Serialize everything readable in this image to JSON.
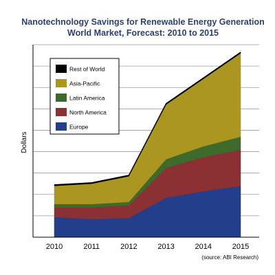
{
  "chart_data": {
    "type": "area",
    "stacked": true,
    "title": "Nanotechnology Savings for Renewable Energy Generation",
    "subtitle": "World Market, Forecast: 2010 to 2015",
    "xlabel": "",
    "ylabel": "Dollars",
    "source": "(source: ABI Research)",
    "categories": [
      "2010",
      "2011",
      "2012",
      "2013",
      "2014",
      "2015"
    ],
    "ylim": [
      0,
      9
    ],
    "y_tick_labels_shown": false,
    "grid": true,
    "legend_position": "top-left",
    "series": [
      {
        "name": "Europe",
        "color": "#233e8b",
        "values": [
          0.95,
          0.85,
          0.9,
          1.85,
          2.15,
          2.4
        ]
      },
      {
        "name": "North America",
        "color": "#8b3033",
        "values": [
          0.45,
          0.55,
          0.6,
          1.4,
          1.6,
          1.7
        ]
      },
      {
        "name": "Latin America",
        "color": "#3e6b2c",
        "values": [
          0.15,
          0.15,
          0.15,
          0.4,
          0.5,
          0.6
        ]
      },
      {
        "name": "Asia-Pacific",
        "color": "#ab9622",
        "values": [
          0.85,
          0.95,
          1.2,
          2.55,
          3.15,
          3.9
        ]
      },
      {
        "name": "Rest of World",
        "color": "#000000",
        "values": [
          0.05,
          0.05,
          0.05,
          0.05,
          0.05,
          0.05
        ]
      }
    ]
  }
}
